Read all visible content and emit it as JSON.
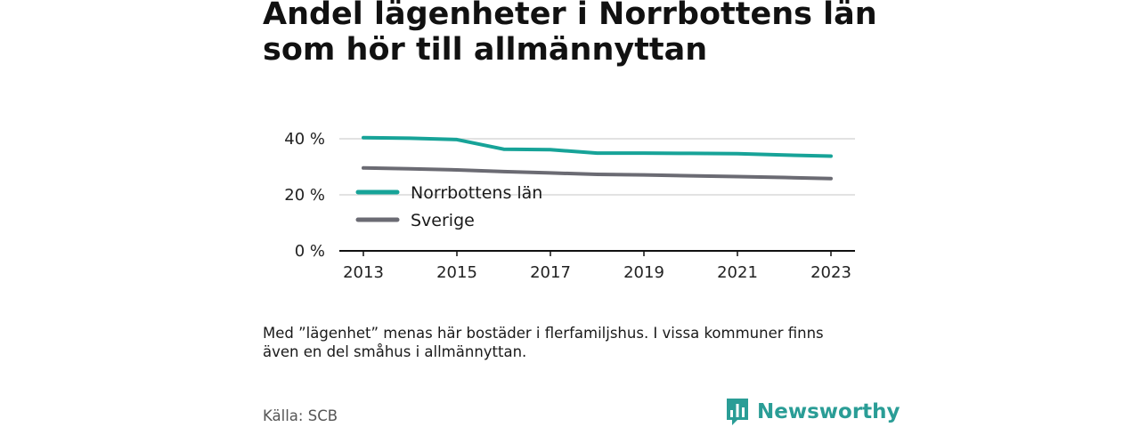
{
  "title": {
    "line1": "Andel lägenheter i Norrbottens län",
    "line2": "som hör till allmännyttan"
  },
  "note": {
    "line1": "Med ”lägenhet” menas här bostäder i flerfamiljshus. I vissa kommuner finns",
    "line2": "även en del småhus i allmännyttan."
  },
  "source": "Källa: SCB",
  "logo": {
    "text": "Newsworthy",
    "color": "#2a9d96",
    "icon": "bar-chart-speech-bubble-icon"
  },
  "chart_data": {
    "type": "line",
    "title": "Andel lägenheter i Norrbottens län som hör till allmännyttan",
    "x": [
      2013,
      2014,
      2015,
      2016,
      2017,
      2018,
      2019,
      2020,
      2021,
      2022,
      2023
    ],
    "xticks": [
      2013,
      2015,
      2017,
      2019,
      2021,
      2023
    ],
    "xtick_labels": [
      "2013",
      "2015",
      "2017",
      "2019",
      "2021",
      "2023"
    ],
    "yticks": [
      0,
      20,
      40
    ],
    "ytick_labels": [
      "0 %",
      "20 %",
      "40 %"
    ],
    "xlim": [
      2013,
      2023
    ],
    "ylim": [
      0,
      40
    ],
    "grid": true,
    "legend_position": "left-inside",
    "series": [
      {
        "name": "Norrbottens län",
        "color": "#17a398",
        "values": [
          40.4,
          40.2,
          39.7,
          36.3,
          36.1,
          34.9,
          34.9,
          34.8,
          34.7,
          34.2,
          33.8
        ]
      },
      {
        "name": "Sverige",
        "color": "#6b6b73",
        "values": [
          29.6,
          29.3,
          28.9,
          28.3,
          27.8,
          27.3,
          27.1,
          26.8,
          26.5,
          26.2,
          25.8
        ]
      }
    ]
  }
}
